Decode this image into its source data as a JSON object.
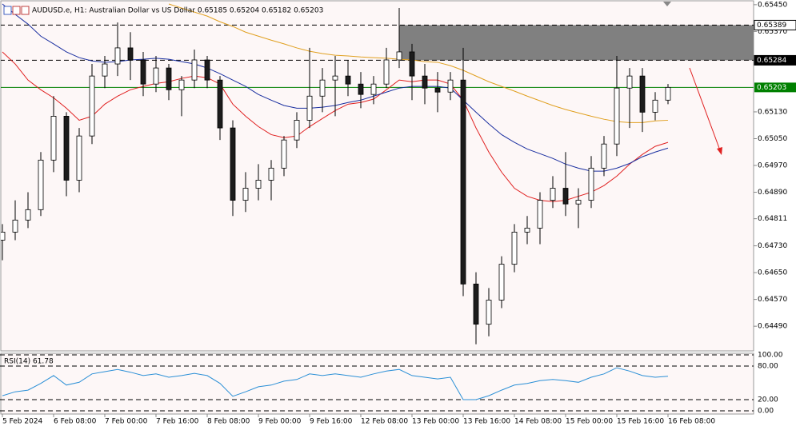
{
  "chart_data": {
    "type": "candlestick",
    "title": "AUDUSD.e, H1:  Australian Dollar vs US Dollar  0.65185 0.65204 0.65182 0.65203",
    "categories": [
      "5 Feb 2024",
      null,
      null,
      null,
      "6 Feb 08:00",
      null,
      null,
      null,
      "7 Feb 00:00",
      null,
      null,
      null,
      "7 Feb 16:00",
      null,
      null,
      null,
      "8 Feb 08:00",
      null,
      null,
      null,
      "9 Feb 00:00",
      null,
      null,
      null,
      "9 Feb 16:00",
      null,
      null,
      null,
      "12 Feb 08:00",
      null,
      null,
      null,
      "13 Feb 00:00",
      null,
      null,
      null,
      "13 Feb 16:00",
      null,
      null,
      null,
      "14 Feb 08:00",
      null,
      null,
      null,
      "15 Feb 00:00",
      null,
      null,
      null,
      "15 Feb 16:00",
      null,
      null,
      null,
      "16 Feb 08:00"
    ],
    "open": [
      0.64747,
      0.64771,
      0.64807,
      0.64838,
      0.64986,
      0.65117,
      0.64926,
      0.65058,
      0.65237,
      0.65273,
      0.65321,
      0.65285,
      0.65213,
      0.65261,
      0.65196,
      0.65225,
      0.65285,
      0.65225,
      0.65082,
      0.64866,
      0.64902,
      0.64926,
      0.64962,
      0.65046,
      0.65105,
      0.65177,
      0.65225,
      0.65237,
      0.65213,
      0.65182,
      0.65213,
      0.65285,
      0.65309,
      0.65237,
      0.65201,
      0.65189,
      0.65225,
      0.64616,
      0.64496,
      0.64568,
      0.64675,
      0.64771,
      0.64783,
      0.64866,
      0.64902,
      0.64855,
      0.64866,
      0.64962,
      0.65034,
      0.65201,
      0.65237,
      0.65129,
      0.65165
    ],
    "high": [
      0.64795,
      0.64866,
      0.6489,
      0.6501,
      0.65177,
      0.65129,
      0.65082,
      0.65273,
      0.65297,
      0.65397,
      0.65368,
      0.65309,
      0.65297,
      0.65273,
      0.65237,
      0.65316,
      0.65297,
      0.65237,
      0.65105,
      0.6495,
      0.64974,
      0.64986,
      0.65058,
      0.65129,
      0.65321,
      0.65261,
      0.65297,
      0.65285,
      0.65249,
      0.65237,
      0.65321,
      0.6544,
      0.65333,
      0.65273,
      0.65249,
      0.65249,
      0.65321,
      0.64651,
      0.64604,
      0.64699,
      0.64795,
      0.64819,
      0.6489,
      0.64938,
      0.6501,
      0.64902,
      0.64998,
      0.65058,
      0.65297,
      0.65261,
      0.65261,
      0.65189,
      0.65213
    ],
    "low": [
      0.64687,
      0.64747,
      0.64783,
      0.64819,
      0.6495,
      0.64878,
      0.6489,
      0.65034,
      0.65201,
      0.65237,
      0.65225,
      0.65177,
      0.65189,
      0.65165,
      0.65117,
      0.65201,
      0.65201,
      0.65046,
      0.64819,
      0.64831,
      0.64866,
      0.64866,
      0.64938,
      0.65022,
      0.65082,
      0.65129,
      0.65117,
      0.65177,
      0.65141,
      0.65153,
      0.65201,
      0.65261,
      0.65165,
      0.65153,
      0.65129,
      0.65165,
      0.6458,
      0.64436,
      0.6446,
      0.64544,
      0.64651,
      0.64735,
      0.64735,
      0.64843,
      0.64819,
      0.64783,
      0.64843,
      0.64938,
      0.64998,
      0.65082,
      0.6507,
      0.65105,
      0.65153
    ],
    "close": [
      0.64771,
      0.64807,
      0.64838,
      0.64986,
      0.65117,
      0.64926,
      0.65058,
      0.65237,
      0.65273,
      0.65321,
      0.65285,
      0.65213,
      0.65261,
      0.65196,
      0.65225,
      0.65285,
      0.65225,
      0.65082,
      0.64866,
      0.64902,
      0.64926,
      0.64962,
      0.65046,
      0.65105,
      0.65177,
      0.65225,
      0.65237,
      0.65213,
      0.65182,
      0.65213,
      0.65285,
      0.65309,
      0.65237,
      0.65201,
      0.65189,
      0.65225,
      0.64616,
      0.64496,
      0.64568,
      0.64675,
      0.64771,
      0.64783,
      0.64866,
      0.64902,
      0.64855,
      0.64866,
      0.64962,
      0.65034,
      0.65201,
      0.65237,
      0.65129,
      0.65165,
      0.65203
    ],
    "up_color": "#ffffff",
    "down_color": "#1c1c1c",
    "wick_color": "#000000",
    "ylim": [
      0.64414,
      0.65464
    ],
    "yticks": [
      {
        "value": 0.6545,
        "label": "0.65450"
      },
      {
        "value": 0.6537,
        "label": "0.65370"
      },
      {
        "value": 0.6513,
        "label": "0.65130"
      },
      {
        "value": 0.6505,
        "label": "0.65050"
      },
      {
        "value": 0.6497,
        "label": "0.64970"
      },
      {
        "value": 0.6489,
        "label": "0.64890"
      },
      {
        "value": 0.64811,
        "label": "0.64811"
      },
      {
        "value": 0.6473,
        "label": "0.64730"
      },
      {
        "value": 0.6465,
        "label": "0.64650"
      },
      {
        "value": 0.6457,
        "label": "0.64570"
      },
      {
        "value": 0.6449,
        "label": "0.64490"
      }
    ],
    "zone_color": "#808080",
    "levels": [
      {
        "value": 0.65389,
        "label": "0.65389",
        "color": "#000000"
      },
      {
        "value": 0.65284,
        "label": "0.65284",
        "color": "#000000"
      }
    ],
    "bid": {
      "value": 0.65203,
      "label": "0.65203",
      "color": "#008000"
    },
    "overlays": [
      {
        "color": "#e02020",
        "values": [
          0.65309,
          0.65273,
          0.65225,
          0.65196,
          0.65172,
          0.65141,
          0.65105,
          0.65117,
          0.65153,
          0.65177,
          0.65196,
          0.65206,
          0.65215,
          0.6522,
          0.6523,
          0.65237,
          0.65232,
          0.65213,
          0.65153,
          0.65117,
          0.65086,
          0.65062,
          0.65053,
          0.65058,
          0.65086,
          0.6511,
          0.65134,
          0.65153,
          0.65158,
          0.65168,
          0.65196,
          0.65225,
          0.6522,
          0.65225,
          0.65225,
          0.65213,
          0.65165,
          0.65082,
          0.6501,
          0.6495,
          0.64902,
          0.64878,
          0.64866,
          0.64862,
          0.64866,
          0.64878,
          0.6489,
          0.6491,
          0.64938,
          0.64974,
          0.65003,
          0.65027,
          0.65039
        ]
      },
      {
        "color": "#1a2fa0",
        "values": [
          0.65452,
          0.65421,
          0.65392,
          0.65356,
          0.65333,
          0.65309,
          0.65292,
          0.65282,
          0.65278,
          0.6528,
          0.65285,
          0.65287,
          0.6529,
          0.65287,
          0.6528,
          0.65273,
          0.65261,
          0.65244,
          0.65225,
          0.65206,
          0.65182,
          0.65165,
          0.65149,
          0.65141,
          0.65141,
          0.65144,
          0.65149,
          0.65158,
          0.65165,
          0.65177,
          0.65189,
          0.65201,
          0.65206,
          0.65206,
          0.65206,
          0.65201,
          0.65165,
          0.65129,
          0.65094,
          0.65062,
          0.65039,
          0.65019,
          0.65005,
          0.64991,
          0.64974,
          0.64962,
          0.64953,
          0.64953,
          0.64962,
          0.64976,
          0.64996,
          0.6501,
          0.65022
        ]
      },
      {
        "color": "#e0a020",
        "values": [
          null,
          null,
          null,
          null,
          null,
          null,
          null,
          null,
          null,
          null,
          null,
          null,
          null,
          0.65452,
          0.6544,
          0.65428,
          0.65416,
          0.65399,
          0.65385,
          0.65368,
          0.65356,
          0.65344,
          0.65333,
          0.65321,
          0.65311,
          0.65304,
          0.65299,
          0.65297,
          0.65294,
          0.65292,
          0.6529,
          0.65287,
          0.65285,
          0.6528,
          0.65278,
          0.65268,
          0.65254,
          0.65237,
          0.6522,
          0.65206,
          0.65192,
          0.65177,
          0.65163,
          0.65149,
          0.65137,
          0.65127,
          0.65117,
          0.65108,
          0.65101,
          0.65098,
          0.65098,
          0.65103,
          0.65105
        ]
      }
    ],
    "rsi": {
      "label": "RSI(14) 61.78",
      "color": "#2a8fd6",
      "values": [
        27,
        34,
        37,
        49,
        63,
        46,
        51,
        66,
        70,
        74,
        69,
        63,
        66,
        60,
        63,
        67,
        63,
        49,
        26,
        34,
        43,
        46,
        53,
        56,
        66,
        63,
        66,
        63,
        60,
        66,
        71,
        74,
        63,
        60,
        57,
        60,
        20,
        20,
        27,
        37,
        46,
        49,
        54,
        56,
        54,
        51,
        60,
        66,
        77,
        71,
        63,
        60,
        61.78
      ],
      "ylim": [
        0,
        100
      ],
      "yticks": [
        {
          "value": 100,
          "label": "100.00"
        },
        {
          "value": 80,
          "label": "80.00"
        },
        {
          "value": 20,
          "label": "20.00"
        },
        {
          "value": 0,
          "label": "0.00"
        }
      ]
    }
  }
}
